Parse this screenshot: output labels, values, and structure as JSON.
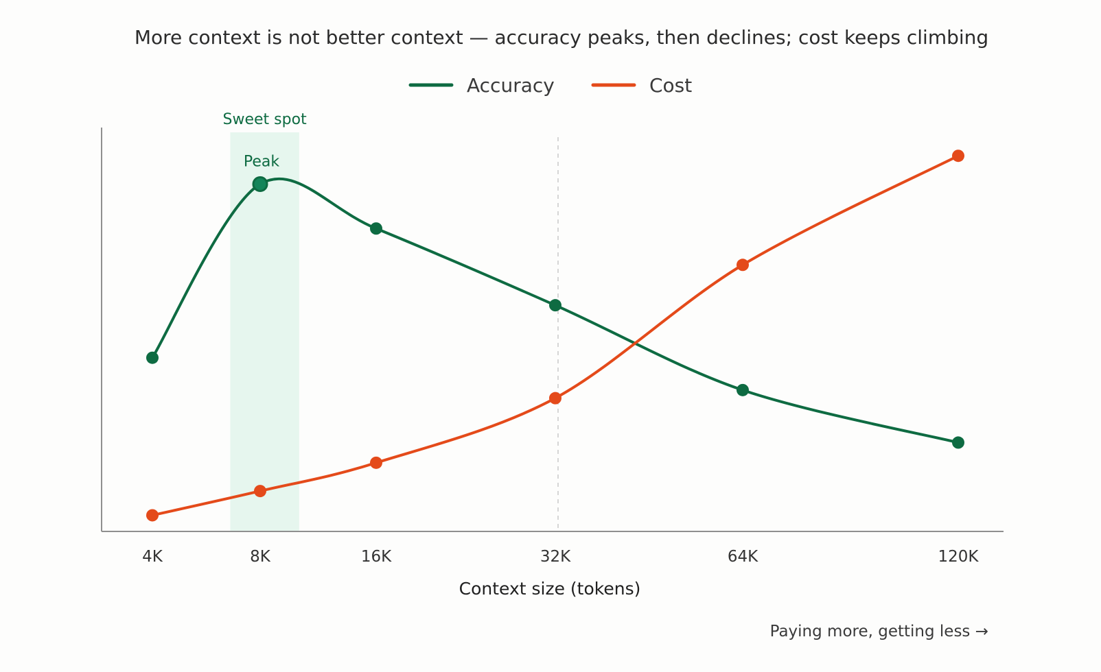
{
  "chart_data": {
    "type": "line",
    "title": "More context is not better context — accuracy peaks, then declines; cost keeps climbing",
    "xlabel": "Context size (tokens)",
    "ylabel": "",
    "categories": [
      "4K",
      "8K",
      "16K",
      "32K",
      "64K",
      "120K"
    ],
    "x": [
      4,
      8,
      16,
      32,
      64,
      120
    ],
    "ylim": [
      0,
      100
    ],
    "grid": false,
    "legend_position": "top-center",
    "series": [
      {
        "name": "Accuracy",
        "color": "#0e6b42",
        "values": [
          43,
          86,
          75,
          56,
          35,
          22
        ]
      },
      {
        "name": "Cost",
        "color": "#e44a1a",
        "values": [
          4,
          10,
          17,
          33,
          66,
          93
        ]
      }
    ],
    "highlight_band": {
      "label": "Sweet spot",
      "x_from": 6.6,
      "x_to": 10.1,
      "color": "#e6f6ee"
    },
    "peak_annotation": {
      "label": "Peak",
      "series": "Accuracy",
      "x": 8
    },
    "reference_line": {
      "x": 32,
      "style": "dashed"
    },
    "footer_note": "Paying more, getting less →"
  }
}
